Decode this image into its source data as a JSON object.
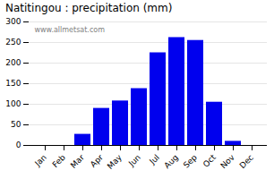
{
  "chart_data": {
    "type": "bar",
    "title": "Natitingou : precipitation (mm)",
    "categories": [
      "Jan",
      "Feb",
      "Mar",
      "Apr",
      "May",
      "Jun",
      "Jul",
      "Aug",
      "Sep",
      "Oct",
      "Nov",
      "Dec"
    ],
    "values": [
      0,
      0,
      27,
      90,
      108,
      138,
      225,
      262,
      255,
      105,
      10,
      0
    ],
    "color": "#0000ee",
    "ylim": [
      0,
      300
    ],
    "yticks": [
      0,
      50,
      100,
      150,
      200,
      250,
      300
    ],
    "grid": true,
    "annotations": [
      "www.allmetsat.com"
    ]
  }
}
